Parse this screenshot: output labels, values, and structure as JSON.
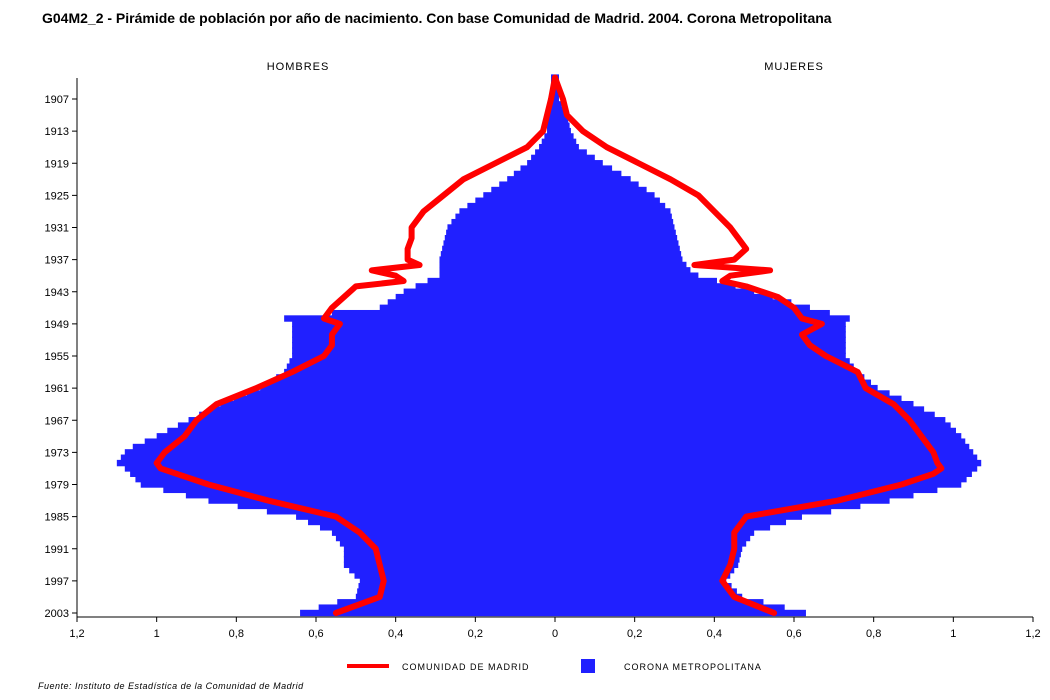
{
  "title": "G04M2_2 - Pirámide de población por año de nacimiento. Con base Comunidad de Madrid. 2004. Corona Metropolitana",
  "source": "Fuente: Instituto de Estadística de la Comunidad de Madrid",
  "colors": {
    "corona": "#2020ff",
    "madrid": "#ff0000"
  },
  "chart_data": {
    "type": "bar",
    "orientation": "horizontal-pyramid",
    "side_labels": {
      "left": "HOMBRES",
      "right": "MUJERES"
    },
    "x_ticks": [
      {
        "v": -1.2,
        "label": "1,2"
      },
      {
        "v": -1.0,
        "label": "1"
      },
      {
        "v": -0.8,
        "label": "0,8"
      },
      {
        "v": -0.6,
        "label": "0,6"
      },
      {
        "v": -0.4,
        "label": "0,4"
      },
      {
        "v": -0.2,
        "label": "0,2"
      },
      {
        "v": 0,
        "label": "0"
      },
      {
        "v": 0.2,
        "label": "0,2"
      },
      {
        "v": 0.4,
        "label": "0,4"
      },
      {
        "v": 0.6,
        "label": "0,6"
      },
      {
        "v": 0.8,
        "label": "0,8"
      },
      {
        "v": 1.0,
        "label": "1"
      },
      {
        "v": 1.2,
        "label": "1,2"
      }
    ],
    "xlim": [
      -1.2,
      1.2
    ],
    "y_ticks": [
      "1907",
      "1913",
      "1919",
      "1925",
      "1931",
      "1937",
      "1943",
      "1949",
      "1955",
      "1961",
      "1967",
      "1973",
      "1979",
      "1985",
      "1991",
      "1997",
      "2003"
    ],
    "ylim": [
      1903,
      2003
    ],
    "legend": [
      {
        "name": "COMUNIDAD DE MADRID",
        "type": "line"
      },
      {
        "name": "CORONA METROPOLITANA",
        "type": "bar"
      }
    ],
    "series": [
      {
        "name": "CORONA METROPOLITANA",
        "type": "bar",
        "years": [
          1903,
          1907,
          1910,
          1913,
          1916,
          1919,
          1922,
          1925,
          1928,
          1931,
          1934,
          1937,
          1939,
          1940,
          1943,
          1946,
          1948,
          1949,
          1952,
          1955,
          1958,
          1961,
          1964,
          1967,
          1970,
          1972,
          1973,
          1975,
          1976,
          1979,
          1982,
          1985,
          1988,
          1991,
          1994,
          1997,
          2000,
          2003
        ],
        "hombres": [
          0.01,
          0.01,
          0.02,
          0.02,
          0.04,
          0.07,
          0.12,
          0.18,
          0.24,
          0.27,
          0.28,
          0.29,
          0.29,
          0.29,
          0.38,
          0.44,
          0.68,
          0.66,
          0.66,
          0.66,
          0.68,
          0.74,
          0.84,
          0.92,
          1.0,
          1.06,
          1.08,
          1.1,
          1.08,
          1.04,
          0.87,
          0.65,
          0.56,
          0.53,
          0.53,
          0.49,
          0.5,
          0.64
        ],
        "mujeres": [
          0.01,
          0.01,
          0.03,
          0.04,
          0.06,
          0.12,
          0.19,
          0.25,
          0.29,
          0.3,
          0.31,
          0.32,
          0.34,
          0.36,
          0.5,
          0.64,
          0.74,
          0.73,
          0.73,
          0.73,
          0.76,
          0.81,
          0.9,
          0.98,
          1.02,
          1.04,
          1.05,
          1.07,
          1.06,
          1.02,
          0.84,
          0.62,
          0.5,
          0.47,
          0.46,
          0.43,
          0.47,
          0.63
        ]
      },
      {
        "name": "COMUNIDAD DE MADRID",
        "type": "line",
        "years": [
          1903,
          1907,
          1910,
          1913,
          1916,
          1919,
          1922,
          1925,
          1928,
          1931,
          1933,
          1935,
          1937,
          1938,
          1939,
          1940,
          1941,
          1942,
          1944,
          1946,
          1948,
          1949,
          1951,
          1953,
          1955,
          1958,
          1961,
          1964,
          1967,
          1970,
          1973,
          1975,
          1976,
          1977,
          1979,
          1982,
          1985,
          1988,
          1991,
          1994,
          1997,
          2000,
          2003
        ],
        "hombres": [
          0.0,
          0.01,
          0.02,
          0.03,
          0.07,
          0.15,
          0.23,
          0.28,
          0.33,
          0.36,
          0.36,
          0.37,
          0.37,
          0.34,
          0.46,
          0.4,
          0.38,
          0.5,
          0.53,
          0.56,
          0.58,
          0.54,
          0.56,
          0.56,
          0.58,
          0.66,
          0.75,
          0.85,
          0.9,
          0.93,
          0.98,
          1.0,
          0.99,
          0.95,
          0.87,
          0.72,
          0.55,
          0.49,
          0.45,
          0.44,
          0.43,
          0.44,
          0.55
        ],
        "mujeres": [
          0.0,
          0.02,
          0.03,
          0.07,
          0.13,
          0.21,
          0.29,
          0.36,
          0.4,
          0.44,
          0.46,
          0.48,
          0.45,
          0.35,
          0.54,
          0.44,
          0.42,
          0.48,
          0.56,
          0.6,
          0.62,
          0.67,
          0.62,
          0.64,
          0.68,
          0.76,
          0.78,
          0.85,
          0.89,
          0.92,
          0.95,
          0.96,
          0.97,
          0.95,
          0.87,
          0.71,
          0.48,
          0.45,
          0.45,
          0.44,
          0.42,
          0.45,
          0.55
        ]
      }
    ]
  }
}
